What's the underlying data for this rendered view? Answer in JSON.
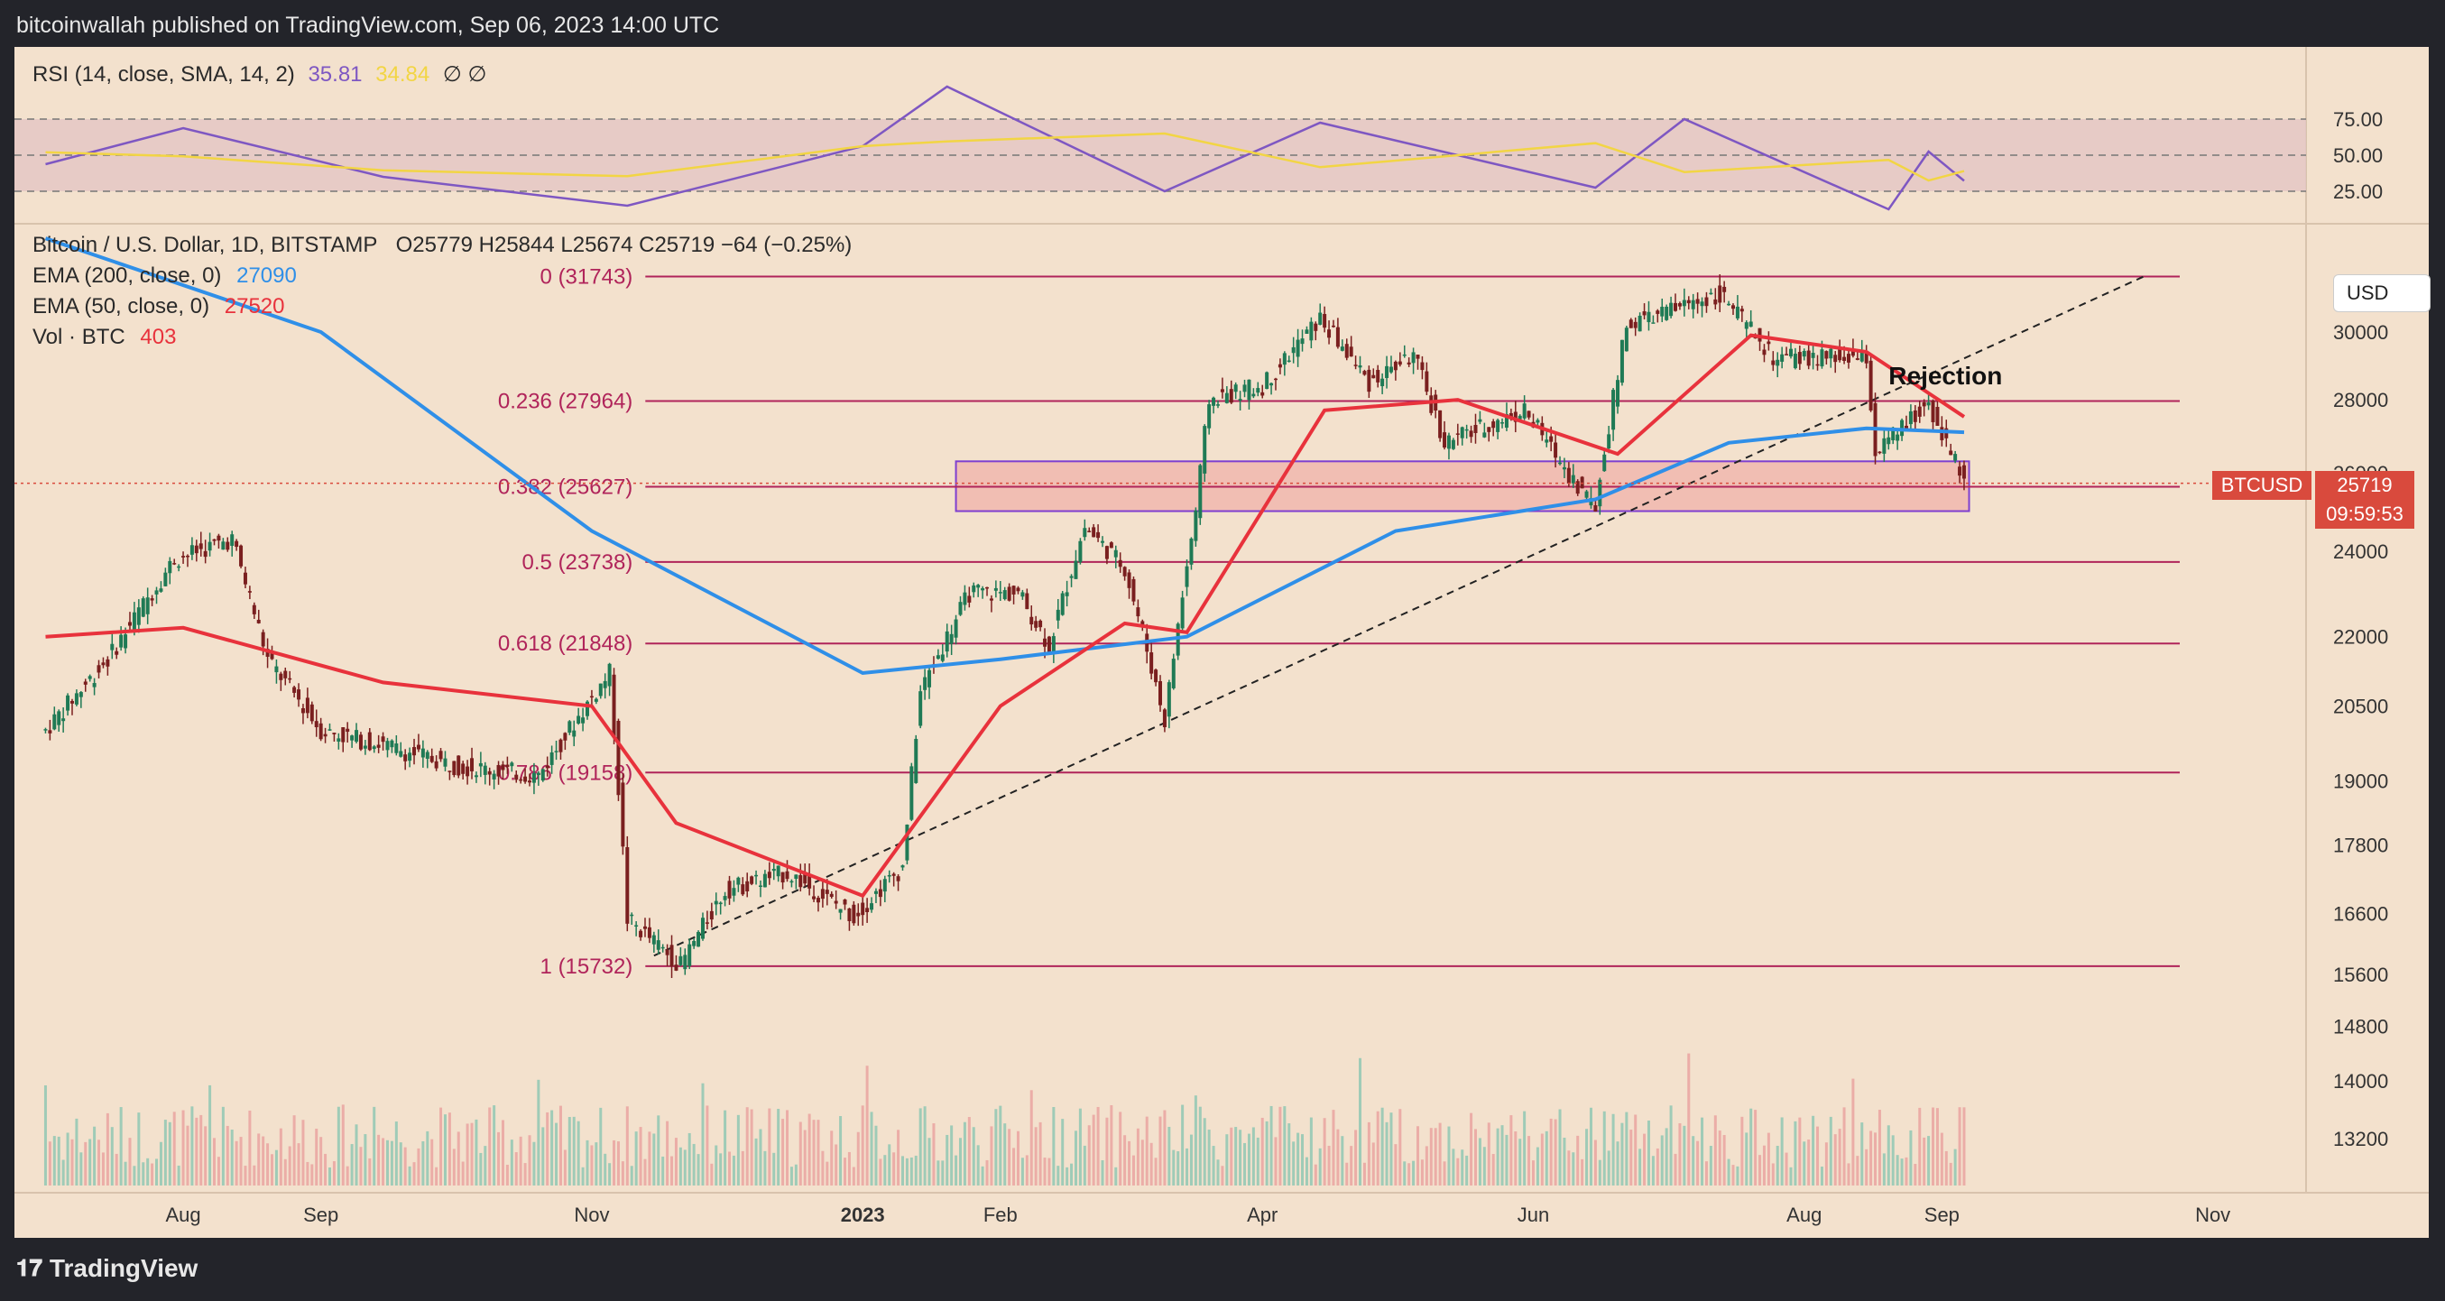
{
  "header": {
    "publisher": "bitcoinwallah published on TradingView.com, Sep 06, 2023 14:00 UTC"
  },
  "footer": {
    "logo_text": "TradingView"
  },
  "rsi_legend": {
    "label": "RSI (14, close, SMA, 14, 2)",
    "rsi_value": "35.81",
    "sma_value": "34.84",
    "extra": "∅ ∅"
  },
  "main_legend": {
    "title": "Bitcoin / U.S. Dollar, 1D, BITSTAMP",
    "ohlc": "O25779  H25844  L25674  C25719  −64 (−0.25%)",
    "ema200_label": "EMA (200, close, 0)",
    "ema200_value": "27090",
    "ema50_label": "EMA (50, close, 0)",
    "ema50_value": "27520",
    "vol_label": "Vol · BTC",
    "vol_value": "403"
  },
  "currency_button": "USD",
  "annotation": "Rejection",
  "price_tag": {
    "symbol": "BTCUSD",
    "price": "25719",
    "countdown": "09:59:53"
  },
  "colors": {
    "background": "#f3e1cd",
    "ema200": "#2f8fe8",
    "ema50": "#e8323c",
    "rsi": "#7e57c2",
    "rsi_sma": "#f2d544",
    "fib": "#b0245a",
    "up": "#1f7a55",
    "down": "#7a1f1f",
    "zone_fill": "#f0a7a2",
    "zone_stroke": "#7e3fd0"
  },
  "chart_data": {
    "type": "candlestick",
    "title": "Bitcoin / U.S. Dollar, 1D, BITSTAMP",
    "x_axis_ticks": [
      "Aug",
      "Sep",
      "Nov",
      "2023",
      "Feb",
      "Apr",
      "Jun",
      "Aug",
      "Sep",
      "Nov"
    ],
    "y_axis_ticks": [
      30000,
      28000,
      26000,
      24000,
      22000,
      20500,
      19000,
      17800,
      16600,
      15600,
      14800,
      14000,
      13200
    ],
    "y_axis_scale": "log",
    "rsi_axis_ticks": [
      "75.00",
      "50.00",
      "25.00"
    ],
    "fib_levels": [
      {
        "label": "0 (31743)",
        "value": 31743
      },
      {
        "label": "0.236 (27964)",
        "value": 27964
      },
      {
        "label": "0.382 (25627)",
        "value": 25627
      },
      {
        "label": "0.5 (23738)",
        "value": 23738
      },
      {
        "label": "0.618 (21848)",
        "value": 21848
      },
      {
        "label": "0.786 (19158)",
        "value": 19158
      },
      {
        "label": "1 (15732)",
        "value": 15732
      }
    ],
    "support_zone": {
      "from": 25000,
      "to": 26300
    },
    "series": [
      {
        "name": "Bitcoin / U.S. Dollar",
        "points": [
          [
            "2022-07-01",
            20000
          ],
          [
            "2022-07-15",
            21500
          ],
          [
            "2022-07-30",
            23800
          ],
          [
            "2022-08-12",
            24300
          ],
          [
            "2022-08-20",
            21500
          ],
          [
            "2022-09-01",
            20000
          ],
          [
            "2022-09-15",
            19700
          ],
          [
            "2022-10-01",
            19300
          ],
          [
            "2022-10-20",
            19100
          ],
          [
            "2022-11-05",
            21200
          ],
          [
            "2022-11-09",
            16500
          ],
          [
            "2022-11-21",
            15750
          ],
          [
            "2022-12-01",
            17000
          ],
          [
            "2022-12-15",
            17300
          ],
          [
            "2022-12-30",
            16550
          ],
          [
            "2023-01-10",
            17400
          ],
          [
            "2023-01-14",
            20800
          ],
          [
            "2023-01-25",
            23000
          ],
          [
            "2023-02-05",
            23000
          ],
          [
            "2023-02-12",
            21800
          ],
          [
            "2023-02-20",
            24600
          ],
          [
            "2023-03-01",
            23600
          ],
          [
            "2023-03-10",
            20200
          ],
          [
            "2023-03-17",
            25000
          ],
          [
            "2023-03-20",
            28000
          ],
          [
            "2023-04-01",
            28400
          ],
          [
            "2023-04-14",
            30400
          ],
          [
            "2023-04-25",
            28500
          ],
          [
            "2023-05-05",
            29300
          ],
          [
            "2023-05-12",
            26800
          ],
          [
            "2023-05-30",
            27700
          ],
          [
            "2023-06-10",
            25800
          ],
          [
            "2023-06-15",
            25100
          ],
          [
            "2023-06-22",
            30200
          ],
          [
            "2023-07-13",
            31200
          ],
          [
            "2023-07-25",
            29200
          ],
          [
            "2023-08-15",
            29200
          ],
          [
            "2023-08-17",
            26500
          ],
          [
            "2023-08-29",
            27900
          ],
          [
            "2023-09-06",
            25719
          ]
        ]
      },
      {
        "name": "EMA (200, close, 0)",
        "points": [
          [
            "2022-07-01",
            33000
          ],
          [
            "2022-09-01",
            30000
          ],
          [
            "2022-11-01",
            24500
          ],
          [
            "2023-01-01",
            21200
          ],
          [
            "2023-02-01",
            21500
          ],
          [
            "2023-03-15",
            22000
          ],
          [
            "2023-05-01",
            24500
          ],
          [
            "2023-06-15",
            25300
          ],
          [
            "2023-07-15",
            26800
          ],
          [
            "2023-08-15",
            27200
          ],
          [
            "2023-09-06",
            27090
          ]
        ]
      },
      {
        "name": "EMA (50, close, 0)",
        "points": [
          [
            "2022-07-01",
            22000
          ],
          [
            "2022-08-01",
            22200
          ],
          [
            "2022-09-15",
            21000
          ],
          [
            "2022-11-01",
            20500
          ],
          [
            "2022-11-20",
            18200
          ],
          [
            "2023-01-01",
            16900
          ],
          [
            "2023-02-01",
            20500
          ],
          [
            "2023-03-01",
            22300
          ],
          [
            "2023-03-15",
            22100
          ],
          [
            "2023-04-15",
            27700
          ],
          [
            "2023-05-15",
            28000
          ],
          [
            "2023-06-20",
            26500
          ],
          [
            "2023-07-20",
            29900
          ],
          [
            "2023-08-15",
            29400
          ],
          [
            "2023-09-06",
            27520
          ]
        ]
      },
      {
        "name": "RSI (14, close, SMA, 14, 2)",
        "points": [
          [
            "2022-07-01",
            45
          ],
          [
            "2022-08-01",
            65
          ],
          [
            "2022-09-15",
            38
          ],
          [
            "2022-11-09",
            22
          ],
          [
            "2023-01-01",
            55
          ],
          [
            "2023-01-20",
            88
          ],
          [
            "2023-03-10",
            30
          ],
          [
            "2023-04-14",
            68
          ],
          [
            "2023-06-15",
            32
          ],
          [
            "2023-07-05",
            70
          ],
          [
            "2023-08-20",
            20
          ],
          [
            "2023-08-29",
            52
          ],
          [
            "2023-09-06",
            35.81
          ]
        ]
      }
    ]
  }
}
